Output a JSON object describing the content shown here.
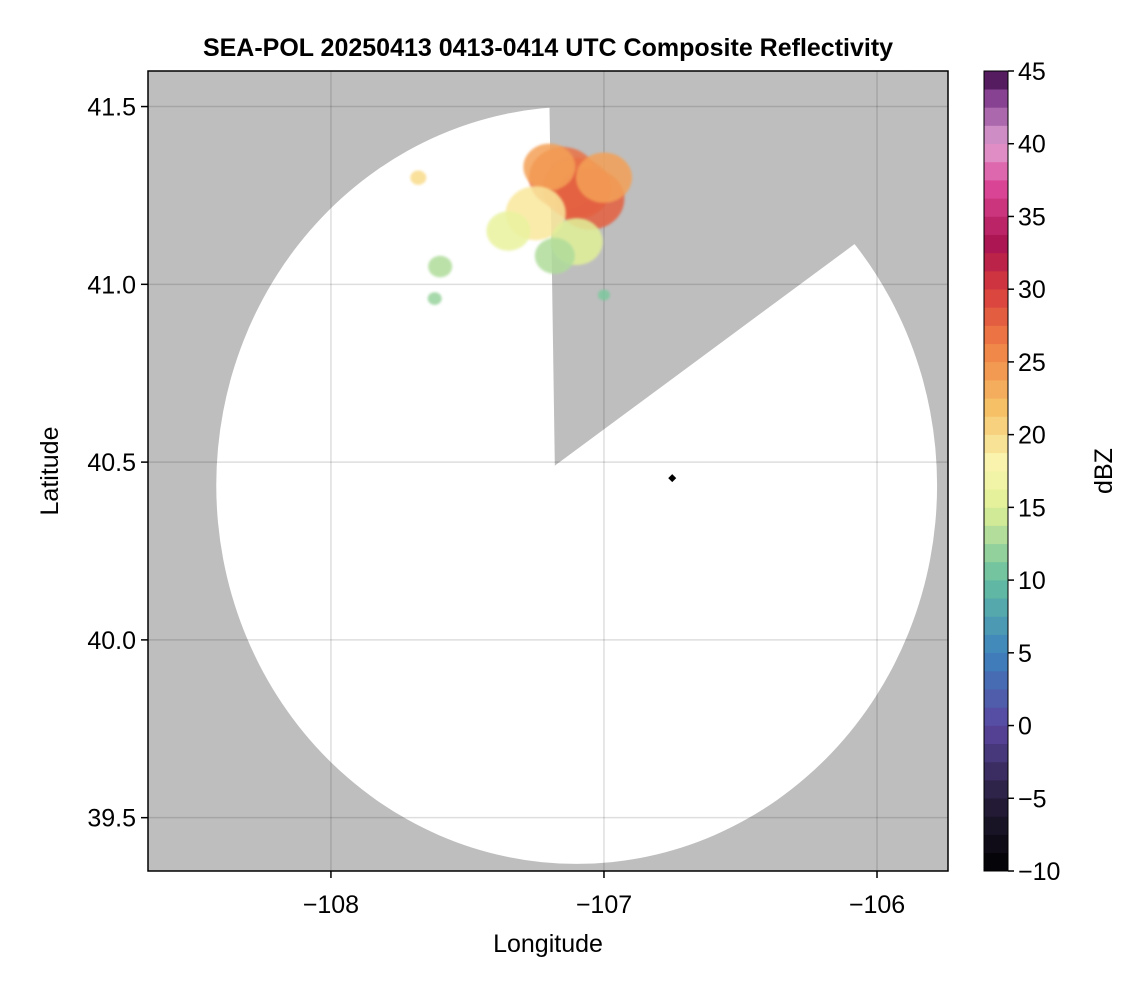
{
  "chart_data": {
    "type": "heatmap",
    "title": "SEA-POL 20250413 0413-0414 UTC Composite Reflectivity",
    "xlabel": "Longitude",
    "ylabel": "Latitude",
    "xlim": [
      -108.67,
      -105.74
    ],
    "ylim": [
      39.35,
      41.6
    ],
    "xticks": [
      -108,
      -107,
      -106
    ],
    "xtick_labels": [
      "−108",
      "−107",
      "−106"
    ],
    "yticks": [
      39.5,
      40.0,
      40.5,
      41.0,
      41.5
    ],
    "ytick_labels": [
      "39.5",
      "40.0",
      "40.5",
      "41.0",
      "41.5"
    ],
    "grid": true,
    "background_color": "#bebebe",
    "radar": {
      "center": {
        "lon": -106.75,
        "lat": 40.45
      },
      "range_edge": {
        "west": -108.42,
        "east": -105.78,
        "south": 39.37,
        "north": 41.5
      },
      "blocked_sector_1": {
        "apex": {
          "lon": -107.18,
          "lat": 40.49
        },
        "ray_a_end": {
          "lon": -107.2,
          "lat": 41.52
        },
        "ray_b_end": {
          "lon": -106.83,
          "lat": 41.53
        }
      },
      "blocked_sector_2": {
        "ray_end_north": {
          "lon": -106.07,
          "lat": 41.12
        },
        "ray_end_south": {
          "lon": -106.03,
          "lat": 41.1
        }
      }
    },
    "colorbar": {
      "label": "dBZ",
      "range": [
        -10,
        45
      ],
      "ticks": [
        -10,
        -5,
        0,
        5,
        10,
        15,
        20,
        25,
        30,
        35,
        40,
        45
      ],
      "tick_labels": [
        "−10",
        "−5",
        "0",
        "5",
        "10",
        "15",
        "20",
        "25",
        "30",
        "35",
        "40",
        "45"
      ],
      "colormap": "Spectral_r"
    },
    "echoes": [
      {
        "lon": -107.1,
        "lat": 41.27,
        "dbz": 28
      },
      {
        "lon": -107.15,
        "lat": 41.3,
        "dbz": 27
      },
      {
        "lon": -107.05,
        "lat": 41.24,
        "dbz": 28
      },
      {
        "lon": -107.2,
        "lat": 41.33,
        "dbz": 24
      },
      {
        "lon": -107.0,
        "lat": 41.3,
        "dbz": 24
      },
      {
        "lon": -107.25,
        "lat": 41.2,
        "dbz": 19
      },
      {
        "lon": -107.1,
        "lat": 41.12,
        "dbz": 15
      },
      {
        "lon": -107.35,
        "lat": 41.15,
        "dbz": 16
      },
      {
        "lon": -107.18,
        "lat": 41.08,
        "dbz": 13
      },
      {
        "lon": -107.6,
        "lat": 41.05,
        "dbz": 13
      },
      {
        "lon": -107.68,
        "lat": 41.3,
        "dbz": 20
      },
      {
        "lon": -107.62,
        "lat": 40.96,
        "dbz": 12
      },
      {
        "lon": -107.0,
        "lat": 40.97,
        "dbz": 11
      }
    ],
    "marker": {
      "lon": -106.75,
      "lat": 40.455,
      "symbol": "diamond",
      "color": "#000000"
    }
  }
}
